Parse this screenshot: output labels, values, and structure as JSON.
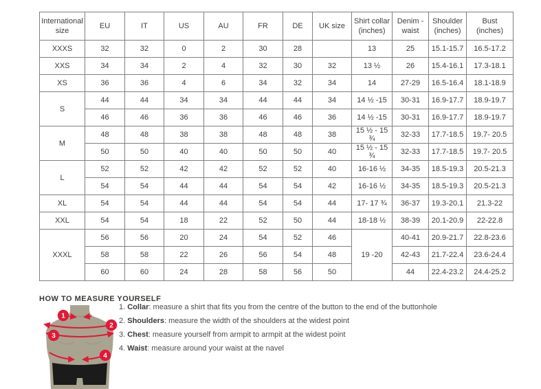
{
  "size_chart": {
    "columns": [
      "International size",
      "EU",
      "IT",
      "US",
      "AU",
      "FR",
      "DE",
      "UK size",
      "Shirt collar (inches)",
      "Denim - waist",
      "Shoulder (inches)",
      "Bust (inches)"
    ],
    "groups": [
      {
        "size": "XXXS",
        "rows": [
          {
            "values": [
              "32",
              "32",
              "0",
              "2",
              "30",
              "28",
              ""
            ],
            "collar": "13",
            "denim": "25",
            "shoulder": "15.1-15.7",
            "bust": "16.5-17.2"
          }
        ]
      },
      {
        "size": "XXS",
        "rows": [
          {
            "values": [
              "34",
              "34",
              "2",
              "4",
              "32",
              "30",
              "32"
            ],
            "collar": "13 ½",
            "denim": "26",
            "shoulder": "15.4-16.1",
            "bust": "17.3-18.1"
          }
        ]
      },
      {
        "size": "XS",
        "rows": [
          {
            "values": [
              "36",
              "36",
              "4",
              "6",
              "34",
              "32",
              "34"
            ],
            "collar": "14",
            "denim": "27-29",
            "shoulder": "16.5-16.4",
            "bust": "18.1-18.9"
          }
        ]
      },
      {
        "size": "S",
        "rows": [
          {
            "values": [
              "44",
              "44",
              "34",
              "34",
              "44",
              "44",
              "34"
            ],
            "collar": "14 ½ -15",
            "denim": "30-31",
            "shoulder": "16.9-17.7",
            "bust": "18.9-19.7"
          },
          {
            "values": [
              "46",
              "46",
              "36",
              "36",
              "46",
              "46",
              "36"
            ],
            "collar": "14 ½ -15",
            "denim": "30-31",
            "shoulder": "16.9-17.7",
            "bust": "18.9-19.7"
          }
        ]
      },
      {
        "size": "M",
        "rows": [
          {
            "values": [
              "48",
              "48",
              "38",
              "38",
              "48",
              "48",
              "38"
            ],
            "collar": "15 ½ - 15 ¾",
            "denim": "32-33",
            "shoulder": "17.7-18.5",
            "bust": "19.7- 20.5"
          },
          {
            "values": [
              "50",
              "50",
              "40",
              "40",
              "50",
              "50",
              "40"
            ],
            "collar": "15 ½ - 15 ¾",
            "denim": "32-33",
            "shoulder": "17.7-18.5",
            "bust": "19.7- 20.5"
          }
        ]
      },
      {
        "size": "L",
        "rows": [
          {
            "values": [
              "52",
              "52",
              "42",
              "42",
              "52",
              "52",
              "40"
            ],
            "collar": "16-16 ½",
            "denim": "34-35",
            "shoulder": "18.5-19.3",
            "bust": "20.5-21.3"
          },
          {
            "values": [
              "54",
              "54",
              "44",
              "44",
              "54",
              "54",
              "42"
            ],
            "collar": "16-16 ½",
            "denim": "34-35",
            "shoulder": "18.5-19.3",
            "bust": "20.5-21.3"
          }
        ]
      },
      {
        "size": "XL",
        "rows": [
          {
            "values": [
              "54",
              "54",
              "44",
              "44",
              "54",
              "54",
              "44"
            ],
            "collar": "17- 17 ¾",
            "denim": "36-37",
            "shoulder": "19.3-20.1",
            "bust": "21.3-22"
          }
        ]
      },
      {
        "size": "XXL",
        "rows": [
          {
            "values": [
              "54",
              "54",
              "18",
              "22",
              "52",
              "50",
              "44"
            ],
            "collar": "18-18 ½",
            "denim": "38-39",
            "shoulder": "20.1-20.9",
            "bust": "22-22.8"
          }
        ]
      },
      {
        "size": "XXXL",
        "merged_collar": "19 -20",
        "rows": [
          {
            "values": [
              "56",
              "56",
              "20",
              "24",
              "54",
              "52",
              "46"
            ],
            "denim": "40-41",
            "shoulder": "20.9-21.7",
            "bust": "22.8-23.6"
          },
          {
            "values": [
              "58",
              "58",
              "22",
              "26",
              "56",
              "54",
              "48"
            ],
            "denim": "42-43",
            "shoulder": "21.7-22.4",
            "bust": "23.6-24.4"
          },
          {
            "values": [
              "60",
              "60",
              "24",
              "28",
              "58",
              "56",
              "50"
            ],
            "denim": "44",
            "shoulder": "22.4-23.2",
            "bust": "24.4-25.2"
          }
        ]
      }
    ]
  },
  "measure": {
    "title": "HOW TO MEASURE YOURSELF",
    "steps": [
      {
        "num": "1.",
        "label": "Collar",
        "text": ": measure a shirt that fits you from the centre of the button to the end of the buttonhole"
      },
      {
        "num": "2.",
        "label": "Shoulders",
        "text": ": measure the width of the shoulders at the widest point"
      },
      {
        "num": "3.",
        "label": "Chest",
        "text": ": measure yourself from armpit to armpit at the widest point"
      },
      {
        "num": "4.",
        "label": "Waist",
        "text": ": measure around your waist at the navel"
      }
    ],
    "figure_markers": [
      "1",
      "2",
      "3",
      "4"
    ]
  },
  "colors": {
    "accent_red": "#e31837",
    "table_border": "#7f7f7f",
    "text": "#3d3d3d",
    "mannequin_body": "#a8a490",
    "mannequin_shorts": "#1b1b1b"
  }
}
